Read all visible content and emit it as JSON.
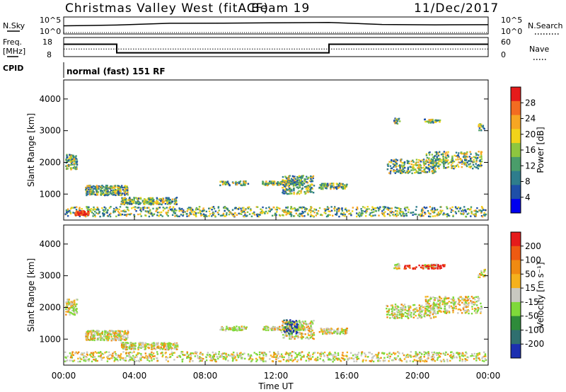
{
  "header": {
    "station": "Christmas Valley West (fitACF)",
    "beam": "Beam 19",
    "date": "11/Dec/2017"
  },
  "top_panels": {
    "nsky_label": "N.Sky",
    "nsearch_label": "N.Search",
    "noise_left_ticks": [
      "10^5",
      "10^0"
    ],
    "noise_right_ticks": [
      "10^5",
      "10^0"
    ],
    "freq_label_1": "Freq.",
    "freq_label_2": "[MHz]",
    "freq_ticks": [
      "18",
      "8"
    ],
    "nave_label": "Nave",
    "nave_ticks": [
      "60",
      "0"
    ],
    "cpid_label": "CPID",
    "cpid_text": "normal (fast) 151 RF"
  },
  "chart_data": [
    {
      "type": "line",
      "name": "noise",
      "series": [
        {
          "name": "N.Sky",
          "x": [
            0,
            3,
            6,
            9,
            12,
            15,
            18,
            21,
            24
          ],
          "values": [
            2,
            2.5,
            3.5,
            3.6,
            3.8,
            4,
            2.8,
            2.6,
            2.7
          ]
        },
        {
          "name": "N.Search",
          "x": [
            0,
            12,
            24
          ],
          "values": [
            0.3,
            0.3,
            0.3
          ]
        }
      ]
    },
    {
      "type": "line",
      "name": "frequency-nave",
      "freq": {
        "x": [
          0,
          3,
          3,
          15,
          15,
          24
        ],
        "values": [
          14.5,
          14.5,
          10,
          10,
          14.5,
          14.5
        ],
        "ylim": [
          8,
          18
        ]
      },
      "nave": {
        "x": [
          0,
          24
        ],
        "values": [
          24,
          24
        ],
        "ylim": [
          0,
          60
        ]
      }
    },
    {
      "type": "heatmap",
      "name": "power",
      "ylabel": "Slant Range [km]",
      "ylim": [
        180,
        4600
      ],
      "yticks": [
        "1000",
        "2000",
        "3000",
        "4000"
      ],
      "colorbar": {
        "label": "Power [dB]",
        "ticks": [
          "28",
          "24",
          "20",
          "16",
          "12",
          "8",
          "4"
        ],
        "range": [
          0,
          30
        ]
      },
      "colors": [
        "#0000ee",
        "#1e4fa8",
        "#2e7d8c",
        "#4a9d6a",
        "#8ec63f",
        "#f2d31a",
        "#f7a623",
        "#f36c21",
        "#e51b1b"
      ]
    },
    {
      "type": "heatmap",
      "name": "velocity",
      "ylabel": "Slant Range [km]",
      "xlabel": "Time UT",
      "ylim": [
        180,
        4600
      ],
      "yticks": [
        "1000",
        "2000",
        "3000",
        "4000"
      ],
      "xticks": [
        "00:00",
        "04:00",
        "08:00",
        "12:00",
        "16:00",
        "20:00",
        "00:00"
      ],
      "xlim": [
        0,
        24
      ],
      "colorbar": {
        "label": "Velocity [m s⁻¹]",
        "ticks": [
          "200",
          "100",
          "50",
          "15",
          "-15",
          "-50",
          "-100",
          "-200"
        ]
      },
      "colors": [
        "#1c2fb0",
        "#2f6f6f",
        "#2e8b3a",
        "#7fd93a",
        "#c8c8c0",
        "#f5b11d",
        "#f08a12",
        "#ee5a12",
        "#e51b1b"
      ]
    }
  ]
}
